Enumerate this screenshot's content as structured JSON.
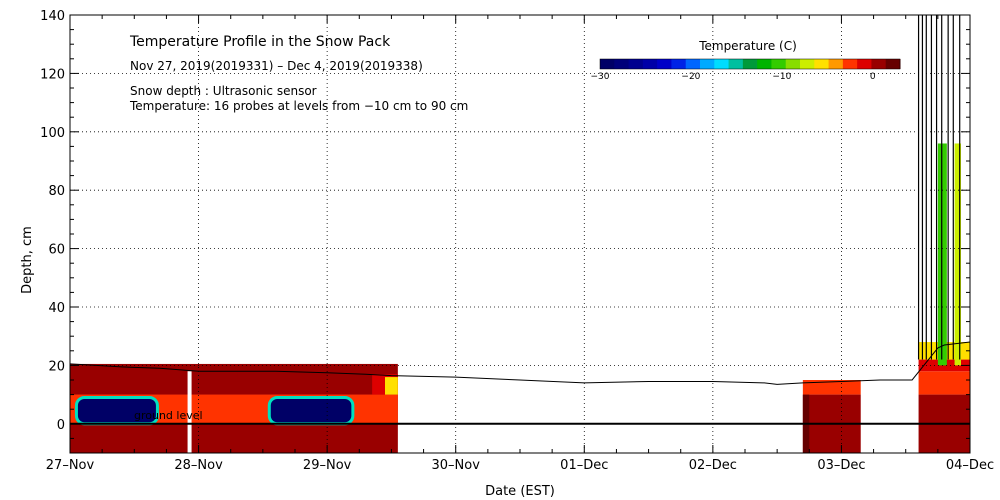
{
  "chart_data": {
    "type": "heatmap",
    "title": "Temperature Profile in the Snow Pack",
    "subtitle": "Nov 27, 2019(2019331) – Dec  4, 2019(2019338)",
    "notes": [
      "Snow depth : Ultrasonic sensor",
      "Temperature: 16 probes at levels from −10 cm to 90 cm"
    ],
    "xlabel": "Date (EST)",
    "ylabel": "Depth, cm",
    "xlim": [
      0,
      7
    ],
    "ylim": [
      -10,
      140
    ],
    "x_tick_labels": [
      "27–Nov",
      "28–Nov",
      "29–Nov",
      "30–Nov",
      "01–Dec",
      "02–Dec",
      "03–Dec",
      "04–Dec"
    ],
    "y_ticks": [
      0,
      20,
      40,
      60,
      80,
      100,
      120,
      140
    ],
    "ground_label": "ground level",
    "grid": true,
    "colorbar": {
      "title": "Temperature (C)",
      "range": [
        -30,
        3
      ],
      "tick_values": [
        -30,
        -20,
        -10,
        0
      ],
      "tick_labels": [
        "−30",
        "−20",
        "−10",
        "0"
      ],
      "colors": [
        "#000066",
        "#00007a",
        "#00008f",
        "#0000a8",
        "#0000c8",
        "#0022e6",
        "#0066ff",
        "#00aaff",
        "#00ddff",
        "#00c0a0",
        "#009a3a",
        "#00b400",
        "#33cc00",
        "#88dd00",
        "#ccee00",
        "#ffe000",
        "#ff9900",
        "#ff3300",
        "#dd0000",
        "#990000",
        "#660000"
      ]
    },
    "snow_depth_series": {
      "name": "Snow depth",
      "x": [
        0,
        0.4,
        0.7,
        1.0,
        1.3,
        1.6,
        2.0,
        2.3,
        2.5,
        3.0,
        3.5,
        4.0,
        4.5,
        5.0,
        5.4,
        5.5,
        5.7,
        6.0,
        6.3,
        6.55,
        6.75,
        6.8,
        7.0
      ],
      "y": [
        20.5,
        19.5,
        19.0,
        18.0,
        18.0,
        18.0,
        17.5,
        17.0,
        16.5,
        16.0,
        15.0,
        14.0,
        14.5,
        14.5,
        14.0,
        13.5,
        14.0,
        14.5,
        15.0,
        15.0,
        26.0,
        27.0,
        28.0
      ]
    },
    "temperature_cells": [
      {
        "x": [
          0,
          2.55
        ],
        "y": [
          10,
          20.5
        ],
        "temp": 0.5
      },
      {
        "x": [
          0,
          2.55
        ],
        "y": [
          -10,
          10
        ],
        "temp": 1.0
      },
      {
        "x": [
          0,
          2.55
        ],
        "y": [
          0,
          10
        ],
        "temp": -2.0
      },
      {
        "x": [
          0.05,
          0.68
        ],
        "y": [
          0,
          9
        ],
        "temp": -30
      },
      {
        "x": [
          1.55,
          2.2
        ],
        "y": [
          0,
          9
        ],
        "temp": -30
      },
      {
        "x": [
          1.3,
          1.8
        ],
        "y": [
          16,
          19
        ],
        "temp": 0
      },
      {
        "x": [
          2.35,
          2.55
        ],
        "y": [
          10,
          17
        ],
        "temp": -1
      },
      {
        "x": [
          2.45,
          2.55
        ],
        "y": [
          10,
          16
        ],
        "temp": -6
      },
      {
        "x": [
          5.7,
          6.15
        ],
        "y": [
          10,
          15
        ],
        "temp": -3
      },
      {
        "x": [
          5.7,
          6.15
        ],
        "y": [
          -10,
          10
        ],
        "temp": 0.5
      },
      {
        "x": [
          5.7,
          5.75
        ],
        "y": [
          -10,
          10
        ],
        "temp": 2.0
      },
      {
        "x": [
          6.6,
          7.0
        ],
        "y": [
          10,
          18
        ],
        "temp": -3
      },
      {
        "x": [
          6.6,
          7.0
        ],
        "y": [
          18,
          22
        ],
        "temp": -1
      },
      {
        "x": [
          6.6,
          7.0
        ],
        "y": [
          22,
          28
        ],
        "temp": -5
      },
      {
        "x": [
          6.6,
          7.0
        ],
        "y": [
          -10,
          10
        ],
        "temp": 0.5
      },
      {
        "x": [
          6.75,
          6.82
        ],
        "y": [
          20,
          96
        ],
        "temp": -10
      },
      {
        "x": [
          6.88,
          6.93
        ],
        "y": [
          20,
          96
        ],
        "temp": -7
      }
    ],
    "spike_x": [
      6.6,
      6.63,
      6.66,
      6.7,
      6.74,
      6.78,
      6.83,
      6.87,
      6.92
    ],
    "gap_x": 0.93
  }
}
